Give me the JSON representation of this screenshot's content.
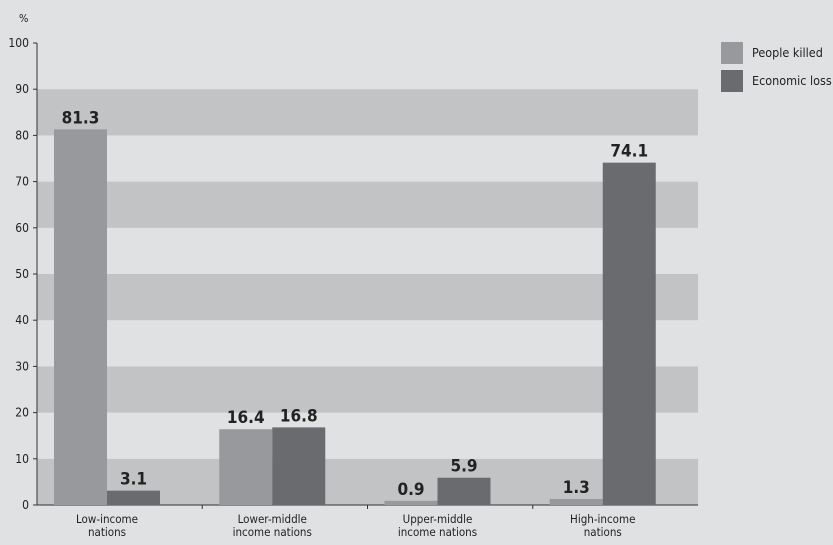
{
  "chart_data": {
    "type": "bar",
    "ylabel": "%",
    "ylim": [
      0,
      100
    ],
    "yticks": [
      0,
      10,
      20,
      30,
      40,
      50,
      60,
      70,
      80,
      90,
      100
    ],
    "categories": [
      [
        "Low-income",
        "nations"
      ],
      [
        "Lower-middle",
        "income nations"
      ],
      [
        "Upper-middle",
        "income nations"
      ],
      [
        "High-income",
        "nations"
      ]
    ],
    "series": [
      {
        "name": "People killed",
        "values": [
          81.3,
          16.4,
          0.9,
          1.3
        ],
        "color": "#97999d"
      },
      {
        "name": "Economic loss",
        "values": [
          3.1,
          16.8,
          5.9,
          74.1
        ],
        "color": "#6a6b6f"
      }
    ],
    "value_labels": [
      [
        "81.3",
        "16.4",
        "0.9",
        "1.3"
      ],
      [
        "3.1",
        "16.8",
        "5.9",
        "74.1"
      ]
    ],
    "legend_position": "top-right",
    "band_colors": [
      "#c1c3c5",
      "#dfe1e3"
    ]
  }
}
